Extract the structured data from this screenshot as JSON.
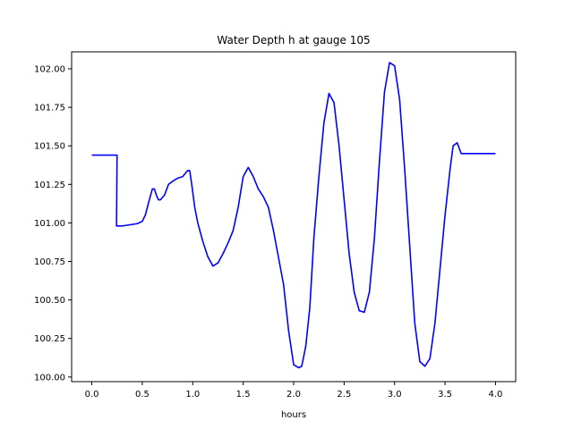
{
  "chart_data": {
    "type": "line",
    "title": "Water Depth h at gauge 105",
    "xlabel": "hours",
    "ylabel": "",
    "xlim": [
      -0.2,
      4.2
    ],
    "ylim": [
      99.97,
      102.11
    ],
    "xticks": [
      0.0,
      0.5,
      1.0,
      1.5,
      2.0,
      2.5,
      3.0,
      3.5,
      4.0
    ],
    "xtick_labels": [
      "0.0",
      "0.5",
      "1.0",
      "1.5",
      "2.0",
      "2.5",
      "3.0",
      "3.5",
      "4.0"
    ],
    "yticks": [
      100.0,
      100.25,
      100.5,
      100.75,
      101.0,
      101.25,
      101.5,
      101.75,
      102.0
    ],
    "ytick_labels": [
      "100.00",
      "100.25",
      "100.50",
      "100.75",
      "101.00",
      "101.25",
      "101.50",
      "101.75",
      "102.00"
    ],
    "grid": false,
    "color": "#0000ff",
    "series": [
      {
        "name": "",
        "x": [
          0.0,
          0.23,
          0.24,
          0.25,
          0.245,
          0.26,
          0.3,
          0.35,
          0.4,
          0.45,
          0.5,
          0.53,
          0.57,
          0.6,
          0.62,
          0.64,
          0.66,
          0.68,
          0.72,
          0.76,
          0.8,
          0.85,
          0.9,
          0.95,
          0.97,
          0.99,
          1.02,
          1.05,
          1.1,
          1.15,
          1.2,
          1.25,
          1.3,
          1.35,
          1.4,
          1.45,
          1.5,
          1.55,
          1.6,
          1.65,
          1.7,
          1.75,
          1.8,
          1.9,
          1.95,
          2.0,
          2.05,
          2.08,
          2.12,
          2.16,
          2.2,
          2.25,
          2.3,
          2.35,
          2.4,
          2.45,
          2.5,
          2.55,
          2.6,
          2.65,
          2.7,
          2.75,
          2.8,
          2.85,
          2.9,
          2.95,
          3.0,
          3.05,
          3.1,
          3.15,
          3.2,
          3.25,
          3.3,
          3.35,
          3.4,
          3.45,
          3.5,
          3.55,
          3.58,
          3.62,
          3.66,
          3.7,
          3.75,
          3.8,
          3.85,
          3.9,
          3.95,
          3.98,
          4.0
        ],
        "values": [
          101.44,
          101.44,
          101.44,
          101.44,
          100.98,
          100.98,
          100.98,
          100.985,
          100.99,
          100.995,
          101.01,
          101.05,
          101.15,
          101.22,
          101.22,
          101.18,
          101.15,
          101.15,
          101.18,
          101.25,
          101.27,
          101.29,
          101.3,
          101.34,
          101.34,
          101.25,
          101.1,
          101.0,
          100.88,
          100.78,
          100.72,
          100.74,
          100.8,
          100.87,
          100.95,
          101.1,
          101.3,
          101.36,
          101.3,
          101.22,
          101.17,
          101.1,
          100.95,
          100.6,
          100.3,
          100.08,
          100.06,
          100.07,
          100.2,
          100.45,
          100.9,
          101.3,
          101.65,
          101.84,
          101.78,
          101.5,
          101.15,
          100.8,
          100.55,
          100.43,
          100.42,
          100.55,
          100.9,
          101.4,
          101.85,
          102.04,
          102.02,
          101.8,
          101.35,
          100.85,
          100.35,
          100.1,
          100.07,
          100.12,
          100.35,
          100.7,
          101.05,
          101.35,
          101.5,
          101.52,
          101.45,
          101.45,
          101.45,
          101.45,
          101.45,
          101.45,
          101.45,
          101.45,
          101.45
        ]
      }
    ]
  }
}
